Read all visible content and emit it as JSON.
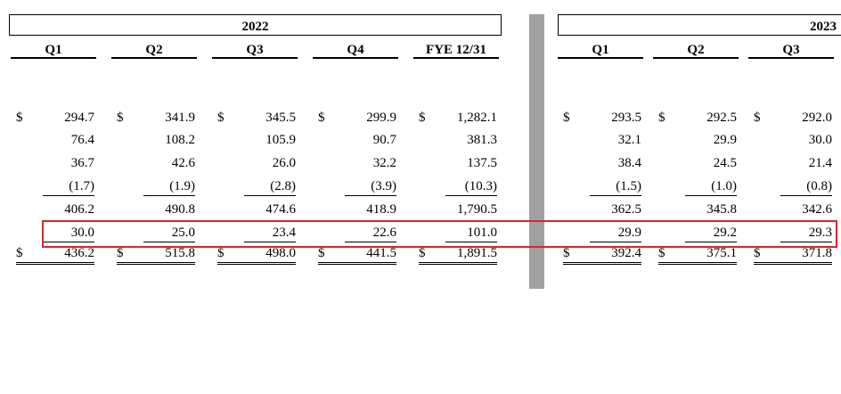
{
  "years": [
    "2022",
    "2023"
  ],
  "headers": [
    "Q1",
    "Q2",
    "Q3",
    "Q4",
    "FYE 12/31",
    "Q1",
    "Q2",
    "Q3"
  ],
  "currency_symbol": "$",
  "rows": [
    {
      "dollar": true,
      "values": [
        "294.7",
        "341.9",
        "345.5",
        "299.9",
        "1,282.1",
        "293.5",
        "292.5",
        "292.0"
      ]
    },
    {
      "dollar": false,
      "values": [
        "76.4",
        "108.2",
        "105.9",
        "90.7",
        "381.3",
        "32.1",
        "29.9",
        "30.0"
      ]
    },
    {
      "dollar": false,
      "values": [
        "36.7",
        "42.6",
        "26.0",
        "32.2",
        "137.5",
        "38.4",
        "24.5",
        "21.4"
      ]
    },
    {
      "dollar": false,
      "values": [
        "(1.7)",
        "(1.9)",
        "(2.8)",
        "(3.9)",
        "(10.3)",
        "(1.5)",
        "(1.0)",
        "(0.8)"
      ]
    },
    {
      "dollar": false,
      "values": [
        "406.2",
        "490.8",
        "474.6",
        "418.9",
        "1,790.5",
        "362.5",
        "345.8",
        "342.6"
      ]
    },
    {
      "dollar": false,
      "values": [
        "30.0",
        "25.0",
        "23.4",
        "22.6",
        "101.0",
        "29.9",
        "29.2",
        "29.3"
      ]
    },
    {
      "dollar": true,
      "values": [
        "436.2",
        "515.8",
        "498.0",
        "441.5",
        "1,891.5",
        "392.4",
        "375.1",
        "371.8"
      ]
    }
  ],
  "colors": {
    "highlight": "#d9262b",
    "divider": "#a0a0a0"
  }
}
